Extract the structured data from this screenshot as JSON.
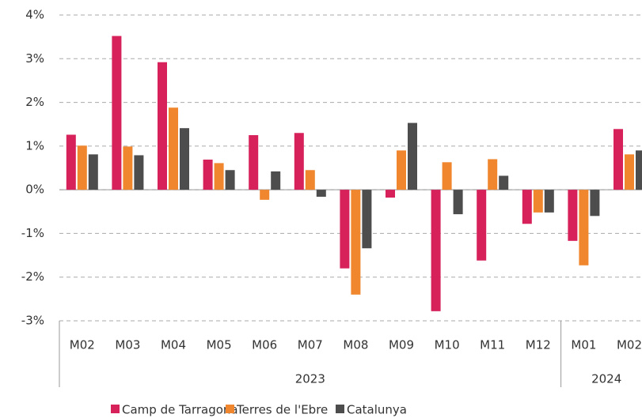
{
  "chart_data": {
    "type": "bar",
    "categories": [
      "M02",
      "M03",
      "M04",
      "M05",
      "M06",
      "M07",
      "M08",
      "M09",
      "M10",
      "M11",
      "M12",
      "M01",
      "M02"
    ],
    "x_groups": [
      {
        "label": "2023",
        "count": 11
      },
      {
        "label": "2024",
        "count": 2
      }
    ],
    "series": [
      {
        "name": "Camp de Tarragona",
        "color": "#d6215b",
        "values": [
          1.26,
          3.52,
          2.92,
          0.69,
          1.25,
          1.3,
          -1.8,
          -0.18,
          -2.78,
          -1.62,
          -0.78,
          -1.17,
          1.39
        ]
      },
      {
        "name": "Terres de l'Ebre",
        "color": "#f0872f",
        "values": [
          1.01,
          0.99,
          1.88,
          0.61,
          -0.23,
          0.45,
          -2.4,
          0.9,
          0.63,
          0.7,
          -0.52,
          -1.73,
          0.81
        ]
      },
      {
        "name": "Catalunya",
        "color": "#4d4d4d",
        "values": [
          0.81,
          0.79,
          1.41,
          0.45,
          0.42,
          -0.16,
          -1.34,
          1.53,
          -0.56,
          0.32,
          -0.52,
          -0.6,
          0.9
        ]
      }
    ],
    "ylim": [
      -3,
      4
    ],
    "yticks": [
      {
        "value": -3,
        "label": "-3%"
      },
      {
        "value": -2,
        "label": "-2%"
      },
      {
        "value": -1,
        "label": "-1%"
      },
      {
        "value": 0,
        "label": "0%"
      },
      {
        "value": 1,
        "label": "1%"
      },
      {
        "value": 2,
        "label": "2%"
      },
      {
        "value": 3,
        "label": "3%"
      },
      {
        "value": 4,
        "label": "4%"
      }
    ],
    "grid": true,
    "legend": "bottom"
  }
}
